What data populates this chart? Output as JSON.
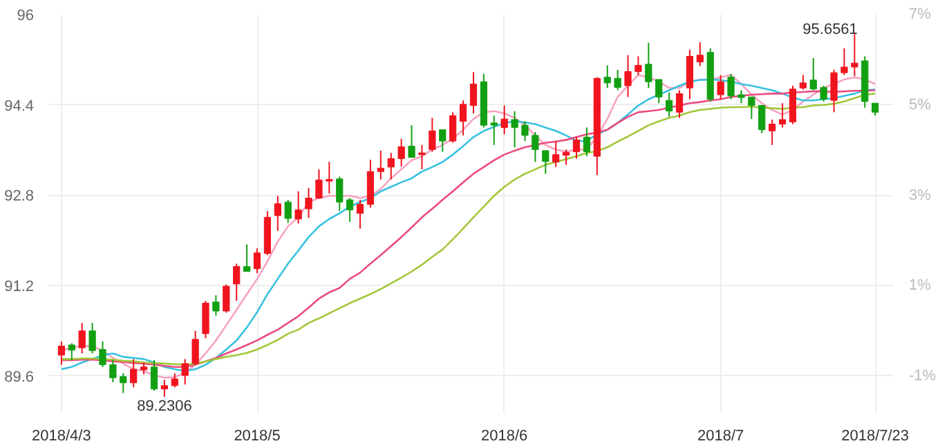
{
  "chart_data": {
    "type": "candlestick",
    "categories": [
      "2018/4/3",
      null,
      null,
      null,
      null,
      null,
      null,
      null,
      null,
      null,
      null,
      null,
      null,
      null,
      null,
      null,
      null,
      null,
      null,
      "2018/5",
      null,
      null,
      null,
      null,
      null,
      null,
      null,
      null,
      null,
      null,
      null,
      null,
      null,
      null,
      null,
      null,
      null,
      null,
      null,
      null,
      null,
      null,
      null,
      "2018/6",
      null,
      null,
      null,
      null,
      null,
      null,
      null,
      null,
      null,
      null,
      null,
      null,
      null,
      null,
      null,
      null,
      null,
      null,
      null,
      null,
      "2018/7",
      null,
      null,
      null,
      null,
      null,
      null,
      null,
      null,
      null,
      null,
      null,
      null,
      null,
      null,
      "2018/7/23"
    ],
    "ohlc": [
      [
        89.97,
        90.21,
        89.8,
        90.13
      ],
      [
        90.15,
        90.18,
        89.88,
        90.06
      ],
      [
        90.1,
        90.54,
        90.0,
        90.4
      ],
      [
        90.4,
        90.54,
        90.0,
        90.05
      ],
      [
        90.07,
        90.21,
        89.76,
        89.8
      ],
      [
        89.8,
        89.88,
        89.49,
        89.57
      ],
      [
        89.59,
        89.65,
        89.3,
        89.48
      ],
      [
        89.48,
        89.9,
        89.4,
        89.72
      ],
      [
        89.71,
        89.84,
        89.63,
        89.76
      ],
      [
        89.76,
        89.88,
        89.34,
        89.37
      ],
      [
        89.37,
        89.53,
        89.2306,
        89.43
      ],
      [
        89.43,
        89.65,
        89.4,
        89.55
      ],
      [
        89.61,
        89.9,
        89.45,
        89.82
      ],
      [
        89.82,
        90.4,
        89.8,
        90.25
      ],
      [
        90.35,
        90.93,
        90.27,
        90.89
      ],
      [
        90.91,
        91.03,
        90.67,
        90.75
      ],
      [
        90.75,
        91.22,
        90.72,
        91.19
      ],
      [
        91.23,
        91.59,
        90.93,
        91.54
      ],
      [
        91.54,
        91.93,
        91.45,
        91.45
      ],
      [
        91.5,
        91.86,
        91.42,
        91.78
      ],
      [
        91.77,
        92.52,
        91.74,
        92.41
      ],
      [
        92.44,
        92.79,
        92.17,
        92.65
      ],
      [
        92.68,
        92.72,
        92.31,
        92.39
      ],
      [
        92.38,
        92.87,
        92.3,
        92.54
      ],
      [
        92.56,
        92.93,
        92.4,
        92.75
      ],
      [
        92.75,
        93.26,
        92.74,
        93.07
      ],
      [
        93.05,
        93.39,
        92.83,
        93.08
      ],
      [
        93.09,
        93.13,
        92.52,
        92.68
      ],
      [
        92.72,
        92.75,
        92.33,
        92.54
      ],
      [
        92.48,
        92.72,
        92.21,
        92.64
      ],
      [
        92.64,
        93.43,
        92.58,
        93.22
      ],
      [
        93.22,
        93.59,
        93.08,
        93.28
      ],
      [
        93.3,
        93.55,
        93.08,
        93.45
      ],
      [
        93.45,
        93.8,
        93.31,
        93.66
      ],
      [
        93.67,
        94.04,
        93.47,
        93.47
      ],
      [
        93.52,
        93.69,
        93.26,
        93.55
      ],
      [
        93.61,
        94.17,
        93.57,
        93.94
      ],
      [
        93.96,
        93.96,
        93.57,
        93.76
      ],
      [
        93.76,
        94.27,
        93.73,
        94.21
      ],
      [
        94.11,
        94.48,
        93.86,
        94.41
      ],
      [
        94.39,
        94.98,
        94.25,
        94.77
      ],
      [
        94.81,
        94.95,
        94.0,
        94.04
      ],
      [
        94.08,
        94.21,
        93.69,
        94.04
      ],
      [
        94.0,
        94.39,
        93.88,
        94.15
      ],
      [
        94.14,
        94.29,
        93.65,
        94.0
      ],
      [
        94.04,
        94.11,
        93.76,
        93.86
      ],
      [
        93.86,
        93.92,
        93.39,
        93.61
      ],
      [
        93.59,
        93.59,
        93.18,
        93.4
      ],
      [
        93.39,
        93.76,
        93.3,
        93.52
      ],
      [
        93.51,
        93.61,
        93.34,
        93.56
      ],
      [
        93.57,
        93.83,
        93.45,
        93.78
      ],
      [
        93.83,
        94.0,
        93.49,
        93.57
      ],
      [
        93.49,
        94.89,
        93.16,
        94.87
      ],
      [
        94.89,
        95.1,
        94.7,
        94.79
      ],
      [
        94.87,
        95.02,
        94.66,
        94.71
      ],
      [
        94.74,
        95.28,
        94.54,
        94.99
      ],
      [
        94.99,
        95.26,
        94.93,
        95.1
      ],
      [
        95.12,
        95.5,
        94.7,
        94.81
      ],
      [
        94.85,
        94.85,
        94.43,
        94.54
      ],
      [
        94.48,
        94.62,
        94.19,
        94.29
      ],
      [
        94.27,
        94.66,
        94.17,
        94.6
      ],
      [
        94.7,
        95.38,
        94.5,
        95.26
      ],
      [
        95.16,
        95.51,
        95.09,
        95.28
      ],
      [
        95.33,
        95.4,
        94.46,
        94.5
      ],
      [
        94.58,
        94.93,
        94.5,
        94.81
      ],
      [
        94.89,
        94.95,
        94.5,
        94.56
      ],
      [
        94.58,
        94.66,
        94.43,
        94.53
      ],
      [
        94.54,
        94.54,
        94.15,
        94.39
      ],
      [
        94.39,
        94.4,
        93.9,
        93.96
      ],
      [
        93.94,
        94.14,
        93.69,
        94.06
      ],
      [
        94.06,
        94.43,
        94.0,
        94.14
      ],
      [
        94.1,
        94.74,
        94.06,
        94.68
      ],
      [
        94.7,
        94.93,
        94.67,
        94.79
      ],
      [
        94.84,
        95.23,
        94.66,
        94.68
      ],
      [
        94.71,
        94.74,
        94.46,
        94.5
      ],
      [
        94.48,
        95.02,
        94.27,
        94.97
      ],
      [
        94.97,
        95.4,
        94.93,
        95.07
      ],
      [
        95.07,
        95.6561,
        94.91,
        95.14
      ],
      [
        95.18,
        95.26,
        94.35,
        94.46
      ],
      [
        94.43,
        94.43,
        94.21,
        94.27
      ]
    ],
    "colors": [
      "#f0141e",
      "#12a012",
      "#f0141e",
      "#12a012",
      "#12a012",
      "#12a012",
      "#12a012",
      "#f0141e",
      "#f0141e",
      "#12a012",
      "#f0141e",
      "#f0141e",
      "#f0141e",
      "#f0141e",
      "#f0141e",
      "#12a012",
      "#f0141e",
      "#f0141e",
      "#12a012",
      "#f0141e",
      "#f0141e",
      "#f0141e",
      "#12a012",
      "#f0141e",
      "#f0141e",
      "#f0141e",
      "#f0141e",
      "#12a012",
      "#12a012",
      "#f0141e",
      "#f0141e",
      "#f0141e",
      "#f0141e",
      "#f0141e",
      "#12a012",
      "#f0141e",
      "#f0141e",
      "#12a012",
      "#f0141e",
      "#f0141e",
      "#f0141e",
      "#12a012",
      "#12a012",
      "#f0141e",
      "#12a012",
      "#12a012",
      "#12a012",
      "#12a012",
      "#f0141e",
      "#f0141e",
      "#f0141e",
      "#12a012",
      "#f0141e",
      "#12a012",
      "#12a012",
      "#f0141e",
      "#f0141e",
      "#12a012",
      "#12a012",
      "#12a012",
      "#f0141e",
      "#f0141e",
      "#f0141e",
      "#12a012",
      "#f0141e",
      "#12a012",
      "#12a012",
      "#12a012",
      "#12a012",
      "#f0141e",
      "#f0141e",
      "#f0141e",
      "#f0141e",
      "#12a012",
      "#12a012",
      "#f0141e",
      "#f0141e",
      "#f0141e",
      "#12a012",
      "#12a012"
    ],
    "series": [
      {
        "type": "line",
        "color": "#f7a3c0",
        "values": [
          90.05,
          90.1,
          90.13,
          90.13,
          90.05,
          89.92,
          89.82,
          89.72,
          89.69,
          89.61,
          89.57,
          89.58,
          89.66,
          89.8,
          90.0,
          90.23,
          90.5,
          90.77,
          91.05,
          91.32,
          91.63,
          91.98,
          92.25,
          92.41,
          92.68,
          92.75,
          92.79,
          92.79,
          92.79,
          92.75,
          92.79,
          92.91,
          93.1,
          93.26,
          93.42,
          93.49,
          93.61,
          93.69,
          93.8,
          93.96,
          94.15,
          94.27,
          94.29,
          94.25,
          94.17,
          94.04,
          93.86,
          93.69,
          93.61,
          93.57,
          93.61,
          93.61,
          93.84,
          94.15,
          94.54,
          94.74,
          94.93,
          94.89,
          94.81,
          94.7,
          94.7,
          94.81,
          94.85,
          94.85,
          94.89,
          94.93,
          94.77,
          94.58,
          94.43,
          94.31,
          94.23,
          94.31,
          94.46,
          94.58,
          94.7,
          94.77,
          94.85,
          94.89,
          94.85,
          94.77
        ]
      },
      {
        "type": "line",
        "color": "#36c1e0",
        "values": [
          89.72,
          89.76,
          89.84,
          89.9,
          89.97,
          90.0,
          89.94,
          89.92,
          89.9,
          89.84,
          89.76,
          89.72,
          89.69,
          89.72,
          89.8,
          89.92,
          90.07,
          90.23,
          90.46,
          90.73,
          91.05,
          91.32,
          91.59,
          91.82,
          92.06,
          92.25,
          92.38,
          92.48,
          92.6,
          92.68,
          92.75,
          92.87,
          92.95,
          93.03,
          93.1,
          93.22,
          93.3,
          93.39,
          93.52,
          93.67,
          93.83,
          93.94,
          94.01,
          94.08,
          94.11,
          94.09,
          94.06,
          94.0,
          93.94,
          93.86,
          93.76,
          93.76,
          93.88,
          93.96,
          94.08,
          94.23,
          94.39,
          94.5,
          94.58,
          94.66,
          94.74,
          94.81,
          94.84,
          94.85,
          94.84,
          94.81,
          94.77,
          94.74,
          94.7,
          94.66,
          94.6,
          94.53,
          94.48,
          94.48,
          94.5,
          94.52,
          94.56,
          94.6,
          94.66,
          94.67
        ]
      },
      {
        "type": "line",
        "color": "#ec4a7f",
        "values": [
          89.88,
          89.88,
          89.89,
          89.89,
          89.88,
          89.86,
          89.85,
          89.83,
          89.82,
          89.8,
          89.78,
          89.76,
          89.76,
          89.8,
          89.86,
          89.92,
          90.0,
          90.07,
          90.15,
          90.23,
          90.33,
          90.42,
          90.54,
          90.66,
          90.81,
          90.97,
          91.08,
          91.16,
          91.32,
          91.43,
          91.59,
          91.74,
          91.9,
          92.06,
          92.23,
          92.41,
          92.56,
          92.72,
          92.87,
          93.03,
          93.18,
          93.3,
          93.42,
          93.52,
          93.59,
          93.65,
          93.69,
          93.73,
          93.75,
          93.78,
          93.83,
          93.88,
          93.91,
          93.96,
          94.08,
          94.19,
          94.27,
          94.29,
          94.31,
          94.35,
          94.39,
          94.43,
          94.45,
          94.48,
          94.5,
          94.54,
          94.56,
          94.58,
          94.59,
          94.6,
          94.6,
          94.62,
          94.63,
          94.64,
          94.64,
          94.63,
          94.64,
          94.65,
          94.65,
          94.66
        ]
      },
      {
        "type": "line",
        "color": "#a2c739",
        "values": [
          89.9,
          89.9,
          89.91,
          89.91,
          89.9,
          89.89,
          89.87,
          89.86,
          89.84,
          89.83,
          89.82,
          89.81,
          89.8,
          89.82,
          89.86,
          89.9,
          89.94,
          89.97,
          90.01,
          90.07,
          90.15,
          90.24,
          90.35,
          90.42,
          90.54,
          90.62,
          90.71,
          90.8,
          90.89,
          90.97,
          91.05,
          91.14,
          91.24,
          91.34,
          91.45,
          91.57,
          91.71,
          91.84,
          92.02,
          92.21,
          92.41,
          92.6,
          92.79,
          92.95,
          93.08,
          93.18,
          93.26,
          93.34,
          93.39,
          93.44,
          93.49,
          93.55,
          93.58,
          93.65,
          93.75,
          93.84,
          93.94,
          94.04,
          94.11,
          94.17,
          94.21,
          94.27,
          94.31,
          94.33,
          94.35,
          94.36,
          94.36,
          94.37,
          94.35,
          94.34,
          94.33,
          94.35,
          94.36,
          94.39,
          94.4,
          94.42,
          94.46,
          94.52,
          94.58,
          94.6
        ]
      }
    ],
    "ylim": [
      88.95,
      96
    ],
    "yticks": [
      89.6,
      91.2,
      92.8,
      94.4,
      96
    ],
    "y2lim": [
      -1.81,
      7
    ],
    "y2ticks": [
      {
        "value": -1,
        "label": "-1%"
      },
      {
        "value": 1,
        "label": "1%"
      },
      {
        "value": 3,
        "label": "3%"
      },
      {
        "value": 5,
        "label": "5%"
      },
      {
        "value": 7,
        "label": "7%"
      }
    ],
    "annotations": [
      "95.6561",
      "89.2306"
    ],
    "grid": true
  }
}
